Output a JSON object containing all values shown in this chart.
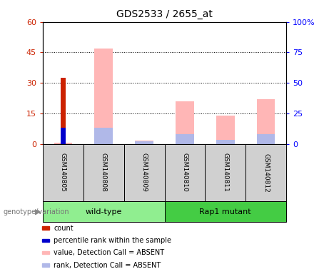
{
  "title": "GDS2533 / 2655_at",
  "samples": [
    "GSM140805",
    "GSM140808",
    "GSM140809",
    "GSM140810",
    "GSM140811",
    "GSM140812"
  ],
  "count": [
    32.5,
    0,
    0,
    0,
    0,
    0
  ],
  "percentile_rank": [
    13,
    0,
    0,
    0,
    0,
    0
  ],
  "value_absent": [
    0.5,
    47,
    1.5,
    21,
    14,
    22
  ],
  "rank_absent": [
    0,
    13,
    2,
    8,
    3,
    8
  ],
  "groups": [
    {
      "label": "wild-type",
      "indices": [
        0,
        1,
        2
      ],
      "color": "#90ee90"
    },
    {
      "label": "Rap1 mutant",
      "indices": [
        3,
        4,
        5
      ],
      "color": "#44cc44"
    }
  ],
  "left_ylim": [
    0,
    60
  ],
  "right_ylim": [
    0,
    100
  ],
  "left_yticks": [
    0,
    15,
    30,
    45,
    60
  ],
  "right_yticks": [
    0,
    25,
    50,
    75,
    100
  ],
  "right_yticklabels": [
    "0",
    "25",
    "50",
    "75",
    "100%"
  ],
  "color_count": "#cc2200",
  "color_percentile": "#0000cc",
  "color_value_absent": "#ffb6b6",
  "color_rank_absent": "#b0b8e8",
  "bar_width": 0.45,
  "narrow_bar_width": 0.13,
  "grid_color": "black",
  "legend_items": [
    {
      "color": "#cc2200",
      "label": "count"
    },
    {
      "color": "#0000cc",
      "label": "percentile rank within the sample"
    },
    {
      "color": "#ffb6b6",
      "label": "value, Detection Call = ABSENT"
    },
    {
      "color": "#b0b8e8",
      "label": "rank, Detection Call = ABSENT"
    }
  ],
  "genotype_label": "genotype/variation",
  "sample_box_color": "#d0d0d0",
  "plot_bg_color": "#ffffff"
}
